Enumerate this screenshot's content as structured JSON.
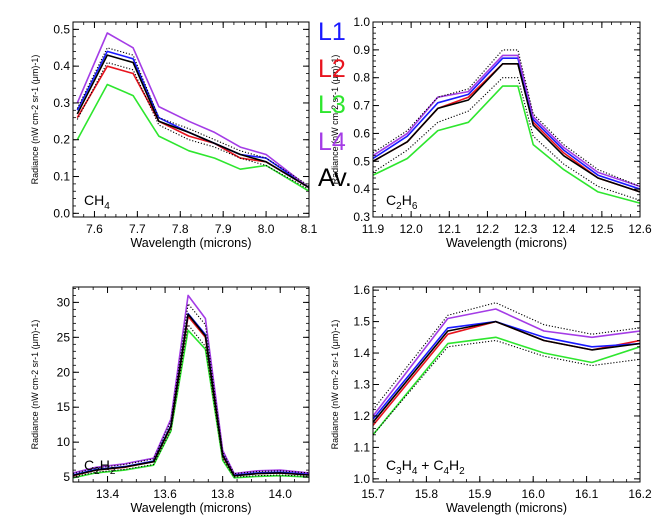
{
  "colors": {
    "L1": "#1a1aff",
    "L2": "#e8141e",
    "L3": "#2ee62e",
    "L4": "#a43ce6",
    "Av": "#000000"
  },
  "legend": [
    {
      "key": "L1",
      "label": "L1"
    },
    {
      "key": "L2",
      "label": "L2"
    },
    {
      "key": "L3",
      "label": "L3"
    },
    {
      "key": "L4",
      "label": "L4"
    },
    {
      "key": "Av",
      "label": "Av."
    }
  ],
  "chart_data": [
    {
      "type": "line",
      "name": "ch4",
      "species_label": {
        "base": "CH",
        "sub": "4",
        "rest": ""
      },
      "xlabel": "Wavelength (microns)",
      "ylabel": "Radiance (nW cm-2 sr-1 (μm)-1)",
      "xlim": [
        7.55,
        8.1
      ],
      "ylim": [
        -0.01,
        0.52
      ],
      "xticks": [
        7.6,
        7.7,
        7.8,
        7.9,
        8.0,
        8.1
      ],
      "xtick_labels": [
        "7.6",
        "7.7",
        "7.8",
        "7.9",
        "8.0",
        "8.1"
      ],
      "yticks": [
        0.0,
        0.1,
        0.2,
        0.3,
        0.4,
        0.5
      ],
      "ytick_labels": [
        "0.0",
        "0.1",
        "0.2",
        "0.3",
        "0.4",
        "0.5"
      ],
      "x": [
        7.56,
        7.63,
        7.69,
        7.75,
        7.82,
        7.88,
        7.94,
        8.0,
        8.1
      ],
      "series": [
        {
          "name": "L1",
          "values": [
            0.28,
            0.44,
            0.42,
            0.26,
            0.22,
            0.19,
            0.16,
            0.15,
            0.07
          ]
        },
        {
          "name": "L2",
          "values": [
            0.26,
            0.4,
            0.38,
            0.25,
            0.21,
            0.19,
            0.15,
            0.14,
            0.07
          ]
        },
        {
          "name": "L3",
          "values": [
            0.2,
            0.35,
            0.32,
            0.21,
            0.17,
            0.15,
            0.12,
            0.13,
            0.06
          ]
        },
        {
          "name": "L4",
          "values": [
            0.3,
            0.49,
            0.45,
            0.29,
            0.25,
            0.22,
            0.18,
            0.16,
            0.07
          ]
        },
        {
          "name": "Av.",
          "values": [
            0.27,
            0.43,
            0.41,
            0.25,
            0.22,
            0.19,
            0.16,
            0.14,
            0.07
          ]
        },
        {
          "name": "Av. +1σ",
          "style": "dotted",
          "values": [
            0.285,
            0.45,
            0.43,
            0.26,
            0.23,
            0.2,
            0.17,
            0.15,
            0.075
          ]
        },
        {
          "name": "Av. -1σ",
          "style": "dotted",
          "values": [
            0.255,
            0.41,
            0.39,
            0.24,
            0.2,
            0.18,
            0.15,
            0.13,
            0.065
          ]
        }
      ]
    },
    {
      "type": "line",
      "name": "c2h6",
      "species_label": {
        "base": "C",
        "sub": "2",
        "base2": "H",
        "sub2": "6",
        "rest": ""
      },
      "xlabel": "Wavelength (microns)",
      "ylabel": "Radiance (nW cm-2 sr-1 (μm)-1)",
      "xlim": [
        11.9,
        12.6
      ],
      "ylim": [
        0.3,
        1.0
      ],
      "xticks": [
        11.9,
        12.0,
        12.1,
        12.2,
        12.3,
        12.4,
        12.5,
        12.6
      ],
      "xtick_labels": [
        "11.9",
        "12.0",
        "12.1",
        "12.2",
        "12.3",
        "12.4",
        "12.5",
        "12.6"
      ],
      "yticks": [
        0.3,
        0.4,
        0.5,
        0.6,
        0.7,
        0.8,
        0.9,
        1.0
      ],
      "ytick_labels": [
        "0.3",
        "0.4",
        "0.5",
        "0.6",
        "0.7",
        "0.8",
        "0.9",
        "1.0"
      ],
      "x": [
        11.9,
        11.99,
        12.07,
        12.15,
        12.24,
        12.28,
        12.32,
        12.4,
        12.49,
        12.6
      ],
      "series": [
        {
          "name": "L1",
          "values": [
            0.51,
            0.59,
            0.71,
            0.74,
            0.87,
            0.87,
            0.65,
            0.54,
            0.45,
            0.4
          ]
        },
        {
          "name": "L2",
          "values": [
            0.5,
            0.57,
            0.69,
            0.73,
            0.85,
            0.85,
            0.64,
            0.53,
            0.44,
            0.39
          ]
        },
        {
          "name": "L3",
          "values": [
            0.45,
            0.51,
            0.61,
            0.64,
            0.77,
            0.77,
            0.56,
            0.47,
            0.39,
            0.35
          ]
        },
        {
          "name": "L4",
          "values": [
            0.52,
            0.6,
            0.73,
            0.75,
            0.88,
            0.88,
            0.66,
            0.55,
            0.46,
            0.41
          ]
        },
        {
          "name": "Av.",
          "values": [
            0.5,
            0.57,
            0.69,
            0.72,
            0.85,
            0.85,
            0.63,
            0.52,
            0.44,
            0.39
          ]
        },
        {
          "name": "Av. +1σ",
          "style": "dotted",
          "values": [
            0.53,
            0.61,
            0.73,
            0.76,
            0.9,
            0.9,
            0.67,
            0.56,
            0.47,
            0.41
          ]
        },
        {
          "name": "Av. -1σ",
          "style": "dotted",
          "values": [
            0.46,
            0.54,
            0.64,
            0.68,
            0.8,
            0.8,
            0.59,
            0.49,
            0.41,
            0.36
          ]
        }
      ]
    },
    {
      "type": "line",
      "name": "c2h2",
      "species_label": {
        "base": "C",
        "sub": "2",
        "base2": "H",
        "sub2": "2",
        "rest": ""
      },
      "xlabel": "Wavelength (microns)",
      "ylabel": "Radiance (nW cm-2 sr-1 (μm)-1)",
      "xlim": [
        13.28,
        14.1
      ],
      "ylim": [
        4.3,
        32.2
      ],
      "xticks": [
        13.4,
        13.6,
        13.8,
        14.0
      ],
      "xtick_labels": [
        "13.4",
        "13.6",
        "13.8",
        "14.0"
      ],
      "yticks": [
        5,
        10,
        15,
        20,
        25,
        30
      ],
      "ytick_labels": [
        "5",
        "10",
        "15",
        "20",
        "25",
        "30"
      ],
      "x": [
        13.28,
        13.36,
        13.46,
        13.56,
        13.62,
        13.68,
        13.74,
        13.8,
        13.84,
        13.92,
        14.0,
        14.1
      ],
      "series": [
        {
          "name": "L1",
          "values": [
            5.3,
            6.1,
            6.5,
            7.3,
            12.4,
            28.4,
            25.4,
            8.2,
            5.3,
            5.6,
            5.7,
            5.4
          ]
        },
        {
          "name": "L2",
          "values": [
            5.2,
            6.0,
            6.4,
            7.2,
            12.2,
            28.0,
            25.0,
            8.0,
            5.2,
            5.5,
            5.6,
            5.3
          ]
        },
        {
          "name": "L3",
          "values": [
            4.9,
            5.6,
            6.0,
            6.7,
            11.6,
            26.0,
            23.3,
            7.4,
            4.9,
            5.1,
            5.2,
            5.0
          ]
        },
        {
          "name": "L4",
          "values": [
            5.6,
            6.4,
            6.9,
            7.7,
            13.3,
            31.0,
            27.7,
            8.8,
            5.5,
            5.9,
            6.0,
            5.6
          ]
        },
        {
          "name": "Av.",
          "values": [
            5.25,
            6.0,
            6.45,
            7.2,
            12.3,
            28.3,
            25.2,
            8.1,
            5.2,
            5.5,
            5.6,
            5.3
          ]
        },
        {
          "name": "Av. +1σ",
          "style": "dotted",
          "values": [
            5.5,
            6.3,
            6.8,
            7.6,
            13.0,
            29.8,
            26.8,
            8.6,
            5.5,
            5.8,
            5.9,
            5.6
          ]
        },
        {
          "name": "Av. -1σ",
          "style": "dotted",
          "values": [
            5.0,
            5.7,
            6.1,
            6.8,
            11.7,
            26.8,
            23.7,
            7.6,
            5.0,
            5.2,
            5.3,
            5.1
          ]
        }
      ]
    },
    {
      "type": "line",
      "name": "c3h4-c4h2",
      "species_label": {
        "base": "C",
        "sub": "3",
        "base2": "H",
        "sub2": "4",
        "rest": " + C",
        "sub3": "4",
        "base4": "H",
        "sub4": "2"
      },
      "xlabel": "Wavelength (microns)",
      "ylabel": "Radiance (nW cm-2 sr-1 (μm)-1)",
      "xlim": [
        15.7,
        16.2
      ],
      "ylim": [
        0.99,
        1.61
      ],
      "xticks": [
        15.7,
        15.8,
        15.9,
        16.0,
        16.1,
        16.2
      ],
      "xtick_labels": [
        "15.7",
        "15.8",
        "15.9",
        "16.0",
        "16.1",
        "16.2"
      ],
      "yticks": [
        1.0,
        1.1,
        1.2,
        1.3,
        1.4,
        1.5,
        1.6
      ],
      "ytick_labels": [
        "1.0",
        "1.1",
        "1.2",
        "1.3",
        "1.4",
        "1.5",
        "1.6"
      ],
      "x": [
        15.7,
        15.84,
        15.93,
        16.02,
        16.11,
        16.2
      ],
      "series": [
        {
          "name": "L1",
          "values": [
            1.19,
            1.48,
            1.5,
            1.45,
            1.42,
            1.43
          ]
        },
        {
          "name": "L2",
          "values": [
            1.17,
            1.46,
            1.5,
            1.44,
            1.41,
            1.44
          ]
        },
        {
          "name": "L3",
          "values": [
            1.14,
            1.43,
            1.45,
            1.4,
            1.37,
            1.42
          ]
        },
        {
          "name": "L4",
          "values": [
            1.2,
            1.51,
            1.54,
            1.47,
            1.45,
            1.47
          ]
        },
        {
          "name": "Av.",
          "values": [
            1.18,
            1.47,
            1.5,
            1.44,
            1.41,
            1.43
          ]
        },
        {
          "name": "Av. +1σ",
          "style": "dotted",
          "values": [
            1.22,
            1.52,
            1.56,
            1.49,
            1.46,
            1.48
          ]
        },
        {
          "name": "Av. -1σ",
          "style": "dotted",
          "values": [
            1.14,
            1.42,
            1.44,
            1.39,
            1.36,
            1.38
          ]
        }
      ]
    }
  ]
}
